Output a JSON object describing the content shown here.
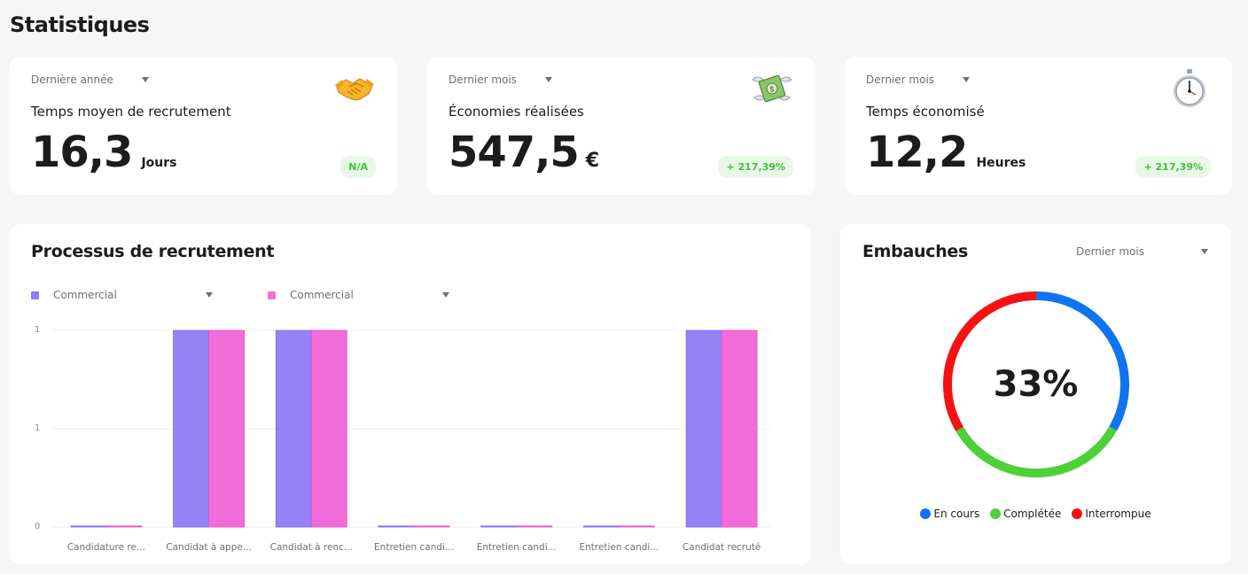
{
  "page": {
    "title": "Statistiques"
  },
  "stats": [
    {
      "period": "Dernière année",
      "label": "Temps moyen de recrutement",
      "value": "16,3",
      "unit": "Jours",
      "badge": "N/A",
      "icon": "handshake-icon"
    },
    {
      "period": "Dernier mois",
      "label": "Économies réalisées",
      "value": "547,5",
      "unit": "€",
      "badge": "+ 217,39%",
      "icon": "money-with-wings-icon"
    },
    {
      "period": "Dernier mois",
      "label": "Temps économisé",
      "value": "12,2",
      "unit": "Heures",
      "badge": "+ 217,39%",
      "icon": "stopwatch-icon"
    }
  ],
  "process": {
    "title": "Processus de recrutement",
    "legend": [
      {
        "label": "Commercial",
        "color": "#8b7cf6"
      },
      {
        "label": "Commercial",
        "color": "#f26dd9"
      }
    ],
    "chart_data": {
      "type": "bar",
      "categories": [
        "Candidature re...",
        "Candidat à appe...",
        "Candidat à renc...",
        "Entretien candi...",
        "Entretien candi...",
        "Entretien candi...",
        "Candidat recruté"
      ],
      "series": [
        {
          "name": "Commercial",
          "values": [
            0,
            1,
            1,
            0,
            0,
            0,
            1
          ]
        },
        {
          "name": "Commercial",
          "values": [
            0,
            1,
            1,
            0,
            0,
            0,
            1
          ]
        }
      ],
      "y_tick_labels": [
        "1",
        "1",
        "0"
      ],
      "ylim": [
        0,
        1
      ],
      "grid": true,
      "colors": [
        "#9582f7",
        "#f26dd9"
      ]
    }
  },
  "hires": {
    "title": "Embauches",
    "period": "Dernier mois",
    "center_label": "33%",
    "chart_data": {
      "type": "pie",
      "categories": [
        "En cours",
        "Complétée",
        "Interrompue"
      ],
      "values": [
        33.3,
        33.3,
        33.4
      ],
      "colors": [
        "#0f74f2",
        "#4cd137",
        "#f51212"
      ]
    },
    "legend": [
      {
        "label": "En cours",
        "color": "#0f74f2"
      },
      {
        "label": "Complétée",
        "color": "#4cd137"
      },
      {
        "label": "Interrompue",
        "color": "#f51212"
      }
    ]
  }
}
